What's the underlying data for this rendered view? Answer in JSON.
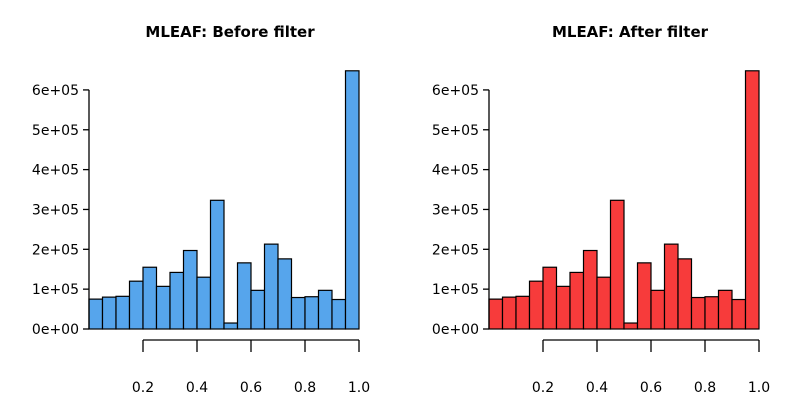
{
  "chart_data": [
    {
      "type": "bar",
      "title": "MLEAF: Before filter",
      "xlabel": "",
      "ylabel": "",
      "x_bin_start": [
        0.0,
        0.05,
        0.1,
        0.15,
        0.2,
        0.25,
        0.3,
        0.35,
        0.4,
        0.45,
        0.5,
        0.55,
        0.6,
        0.65,
        0.7,
        0.75,
        0.8,
        0.85,
        0.9,
        0.95
      ],
      "x_bin_end": [
        0.05,
        0.1,
        0.15,
        0.2,
        0.25,
        0.3,
        0.35,
        0.4,
        0.45,
        0.5,
        0.55,
        0.6,
        0.65,
        0.7,
        0.75,
        0.8,
        0.85,
        0.9,
        0.95,
        1.0
      ],
      "values": [
        75000,
        80000,
        82000,
        120000,
        155000,
        107000,
        142000,
        197000,
        130000,
        323000,
        15000,
        166000,
        97000,
        213000,
        176000,
        79000,
        81000,
        97000,
        74000,
        648000
      ],
      "xlim": [
        0.0,
        1.0
      ],
      "ylim": [
        0,
        650000
      ],
      "x_ticks": [
        0.2,
        0.4,
        0.6,
        0.8,
        1.0
      ],
      "x_tick_labels": [
        "0.2",
        "0.4",
        "0.6",
        "0.8",
        "1.0"
      ],
      "y_ticks": [
        0,
        100000,
        200000,
        300000,
        400000,
        500000,
        600000
      ],
      "y_tick_labels": [
        "0e+00",
        "1e+05",
        "2e+05",
        "3e+05",
        "4e+05",
        "5e+05",
        "6e+05"
      ],
      "bar_color": "#56A5EC",
      "grid": false,
      "legend": "none"
    },
    {
      "type": "bar",
      "title": "MLEAF: After filter",
      "xlabel": "",
      "ylabel": "",
      "x_bin_start": [
        0.0,
        0.05,
        0.1,
        0.15,
        0.2,
        0.25,
        0.3,
        0.35,
        0.4,
        0.45,
        0.5,
        0.55,
        0.6,
        0.65,
        0.7,
        0.75,
        0.8,
        0.85,
        0.9,
        0.95
      ],
      "x_bin_end": [
        0.05,
        0.1,
        0.15,
        0.2,
        0.25,
        0.3,
        0.35,
        0.4,
        0.45,
        0.5,
        0.55,
        0.6,
        0.65,
        0.7,
        0.75,
        0.8,
        0.85,
        0.9,
        0.95,
        1.0
      ],
      "values": [
        75000,
        80000,
        82000,
        120000,
        155000,
        107000,
        142000,
        197000,
        130000,
        323000,
        15000,
        166000,
        97000,
        213000,
        176000,
        79000,
        81000,
        97000,
        74000,
        648000
      ],
      "xlim": [
        0.0,
        1.0
      ],
      "ylim": [
        0,
        650000
      ],
      "x_ticks": [
        0.2,
        0.4,
        0.6,
        0.8,
        1.0
      ],
      "x_tick_labels": [
        "0.2",
        "0.4",
        "0.6",
        "0.8",
        "1.0"
      ],
      "y_ticks": [
        0,
        100000,
        200000,
        300000,
        400000,
        500000,
        600000
      ],
      "y_tick_labels": [
        "0e+00",
        "1e+05",
        "2e+05",
        "3e+05",
        "4e+05",
        "5e+05",
        "6e+05"
      ],
      "bar_color": "#F73B3B",
      "grid": false,
      "legend": "none"
    }
  ]
}
